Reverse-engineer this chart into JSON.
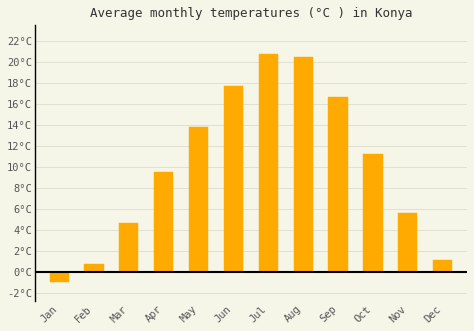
{
  "title": "Average monthly temperatures (°C ) in Konya",
  "months": [
    "Jan",
    "Feb",
    "Mar",
    "Apr",
    "May",
    "Jun",
    "Jul",
    "Aug",
    "Sep",
    "Oct",
    "Nov",
    "Dec"
  ],
  "values": [
    -1.0,
    0.7,
    4.6,
    9.5,
    13.8,
    17.7,
    20.8,
    20.5,
    16.7,
    11.2,
    5.6,
    1.1
  ],
  "bar_color": "#FFAA00",
  "bar_edge_color": "#FFAA00",
  "background_color": "#F5F5E8",
  "grid_color": "#DDDDCC",
  "ytick_labels": [
    "-2°C",
    "0°C",
    "2°C",
    "4°C",
    "6°C",
    "8°C",
    "10°C",
    "12°C",
    "14°C",
    "16°C",
    "18°C",
    "20°C",
    "22°C"
  ],
  "ytick_values": [
    -2,
    0,
    2,
    4,
    6,
    8,
    10,
    12,
    14,
    16,
    18,
    20,
    22
  ],
  "ylim": [
    -2.8,
    23.5
  ],
  "title_fontsize": 9,
  "tick_fontsize": 7.5,
  "bar_width": 0.55
}
